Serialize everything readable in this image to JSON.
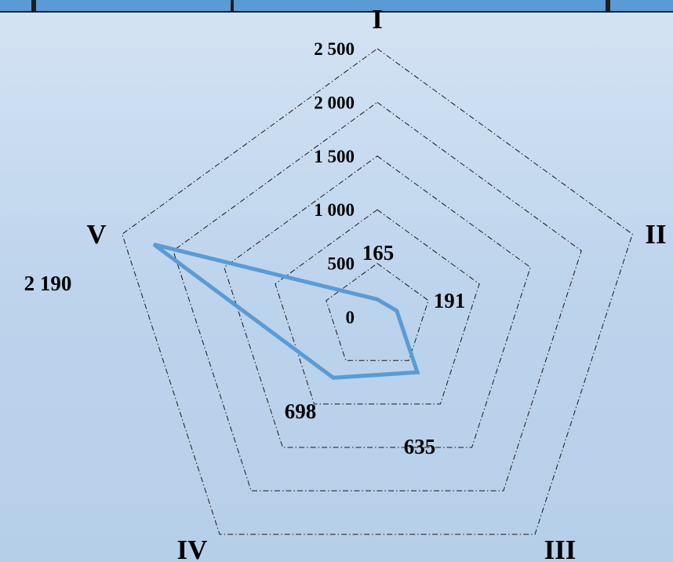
{
  "chart_data": {
    "type": "radar",
    "categories": [
      "I",
      "II",
      "III",
      "IV",
      "V"
    ],
    "series": [
      {
        "values": [
          165,
          191,
          635,
          698,
          2190
        ],
        "color": "#5b9bd5"
      }
    ],
    "data_labels": [
      "165",
      "191",
      "635",
      "698",
      "2 190"
    ],
    "rlim": [
      0,
      2500
    ],
    "ticks": [
      0,
      500,
      1000,
      1500,
      2000,
      2500
    ],
    "tick_labels": [
      "0",
      "500",
      "1 000",
      "1 500",
      "2 000",
      "2 500"
    ],
    "grid": true,
    "grid_style": "dash-dot",
    "legend": false
  }
}
